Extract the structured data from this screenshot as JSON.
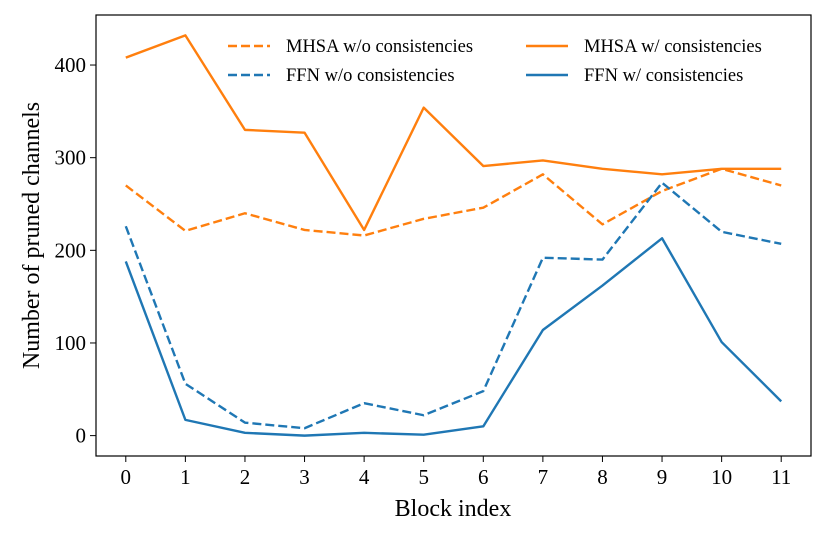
{
  "chart_data": {
    "type": "line",
    "title": "",
    "xlabel": "Block index",
    "ylabel": "Number of pruned channels",
    "x": [
      0,
      1,
      2,
      3,
      4,
      5,
      6,
      7,
      8,
      9,
      10,
      11
    ],
    "x_tick_labels": [
      "0",
      "1",
      "2",
      "3",
      "4",
      "5",
      "6",
      "7",
      "8",
      "9",
      "10",
      "11"
    ],
    "y_ticks": [
      0,
      100,
      200,
      300,
      400
    ],
    "y_tick_labels": [
      "0",
      "100",
      "200",
      "300",
      "400"
    ],
    "xlim": [
      -0.5,
      11.5
    ],
    "ylim": [
      -22,
      454
    ],
    "grid": false,
    "legend_position": "top",
    "series": [
      {
        "name": "MHSA w/o consistencies",
        "color": "#ff7f0e",
        "style": "dashed",
        "values": [
          270,
          221,
          240,
          222,
          216,
          234,
          246,
          282,
          228,
          264,
          288,
          270
        ]
      },
      {
        "name": "FFN w/o consistencies",
        "color": "#1f77b4",
        "style": "dashed",
        "values": [
          226,
          56,
          14,
          8,
          35,
          22,
          48,
          192,
          190,
          273,
          220,
          207
        ]
      },
      {
        "name": "MHSA w/ consistencies",
        "color": "#ff7f0e",
        "style": "solid",
        "values": [
          408,
          432,
          330,
          327,
          222,
          354,
          291,
          297,
          288,
          282,
          288,
          288
        ]
      },
      {
        "name": "FFN w/ consistencies",
        "color": "#1f77b4",
        "style": "solid",
        "values": [
          188,
          17,
          3,
          0,
          3,
          1,
          10,
          114,
          162,
          213,
          101,
          37
        ]
      }
    ]
  }
}
